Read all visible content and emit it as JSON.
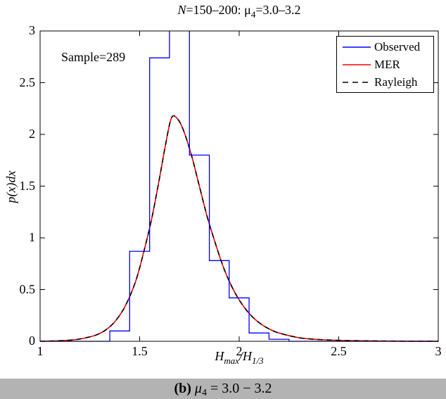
{
  "title_parts": {
    "n": "N",
    "seg1": "=150–200: ",
    "mu": "μ",
    "mu_sub": "4",
    "seg2": "=3.0–3.2"
  },
  "annotation": {
    "sample": "Sample=289"
  },
  "axis_labels": {
    "y_italic": "p(x)dx",
    "x_h1": "H",
    "x_sub1": "max",
    "x_slash": "/H",
    "x_sub2": "1/3"
  },
  "tick_labels": {
    "x": [
      "1",
      "1.5",
      "2",
      "2.5",
      "3"
    ],
    "y": [
      "0",
      "0.5",
      "1",
      "1.5",
      "2",
      "2.5",
      "3"
    ]
  },
  "legend": {
    "items": [
      {
        "label": "Observed",
        "color": "#0000ff",
        "dash": ""
      },
      {
        "label": "MER",
        "color": "#ff0000",
        "dash": ""
      },
      {
        "label": "Rayleigh",
        "color": "#000000",
        "dash": "8 6"
      }
    ]
  },
  "caption": {
    "b": "(b)",
    "mu": "μ",
    "sub": "4",
    "rest": " = 3.0 − 3.2"
  },
  "colors": {
    "background": "#ffffff",
    "axis": "#000000",
    "caption_bg": "#b3b3b3",
    "observed": "#0000ff",
    "mer": "#ff0000",
    "rayleigh": "#000000"
  },
  "chart_data": {
    "type": "histogram+line",
    "title": "N=150-200: mu_4=3.0-3.2",
    "annotation": "Sample=289",
    "xlabel": "H_max/H_1/3",
    "ylabel": "p(x)dx",
    "xlim": [
      1,
      3
    ],
    "ylim": [
      0,
      3
    ],
    "xticks": [
      1,
      1.5,
      2,
      2.5,
      3
    ],
    "yticks": [
      0,
      0.5,
      1,
      1.5,
      2,
      2.5,
      3
    ],
    "grid": false,
    "legend_position": "top-right",
    "histogram": {
      "name": "Observed",
      "color": "#0000ff",
      "bin_edges": [
        1.35,
        1.45,
        1.55,
        1.65,
        1.75,
        1.85,
        1.95,
        2.05,
        2.15,
        2.25
      ],
      "heights": [
        0.1,
        0.87,
        2.74,
        3.2,
        1.8,
        0.78,
        0.42,
        0.08,
        0.02
      ],
      "clipped_at": 3.0,
      "baseline_extends": [
        1.0,
        3.0
      ]
    },
    "curves": [
      {
        "name": "MER",
        "color": "#ff0000",
        "style": "solid",
        "x": [
          1.0,
          1.08,
          1.16,
          1.22,
          1.28,
          1.33,
          1.38,
          1.43,
          1.48,
          1.52,
          1.56,
          1.6,
          1.63,
          1.66,
          1.69,
          1.72,
          1.76,
          1.8,
          1.84,
          1.88,
          1.92,
          1.96,
          2.0,
          2.05,
          2.1,
          2.15,
          2.2,
          2.3,
          2.4,
          2.55,
          2.75,
          3.0
        ],
        "y": [
          0.001,
          0.004,
          0.012,
          0.03,
          0.06,
          0.11,
          0.2,
          0.35,
          0.58,
          0.86,
          1.18,
          1.58,
          1.9,
          2.16,
          2.15,
          2.04,
          1.8,
          1.5,
          1.2,
          0.95,
          0.72,
          0.54,
          0.4,
          0.27,
          0.18,
          0.12,
          0.08,
          0.035,
          0.017,
          0.007,
          0.002,
          0.001
        ]
      },
      {
        "name": "Rayleigh",
        "color": "#000000",
        "style": "dashed",
        "x": [
          1.0,
          1.08,
          1.16,
          1.22,
          1.28,
          1.33,
          1.38,
          1.43,
          1.48,
          1.52,
          1.56,
          1.6,
          1.63,
          1.66,
          1.69,
          1.72,
          1.76,
          1.8,
          1.84,
          1.88,
          1.92,
          1.96,
          2.0,
          2.05,
          2.1,
          2.15,
          2.2,
          2.3,
          2.4,
          2.55,
          2.75,
          3.0
        ],
        "y": [
          0.001,
          0.004,
          0.012,
          0.03,
          0.06,
          0.11,
          0.2,
          0.35,
          0.58,
          0.86,
          1.18,
          1.58,
          1.9,
          2.16,
          2.15,
          2.04,
          1.8,
          1.5,
          1.2,
          0.95,
          0.72,
          0.54,
          0.4,
          0.27,
          0.18,
          0.12,
          0.08,
          0.035,
          0.017,
          0.007,
          0.002,
          0.001
        ]
      }
    ],
    "peak": {
      "x": 1.66,
      "y": 2.16
    }
  }
}
